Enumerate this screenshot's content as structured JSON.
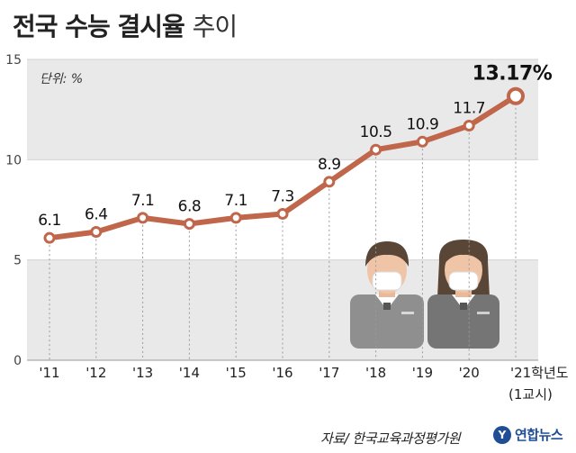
{
  "title": {
    "main": "전국 수능 결시율",
    "sub": "추이"
  },
  "unit_label": "단위: %",
  "source": "자료/ 한국교육과정평가원",
  "logo": {
    "name": "연합뉴스",
    "icon": "yonhap-logo-icon"
  },
  "colors": {
    "line": "#c0664a",
    "band": "#e9e9e9",
    "figure": "#8f8f8f"
  },
  "chart_data": {
    "type": "line",
    "categories": [
      "'11",
      "'12",
      "'13",
      "'14",
      "'15",
      "'16",
      "'17",
      "'18",
      "'19",
      "'20",
      "'21학년도"
    ],
    "last_category_note": "(1교시)",
    "values": [
      6.1,
      6.4,
      7.1,
      6.8,
      7.1,
      7.3,
      8.9,
      10.5,
      10.9,
      11.7,
      13.17
    ],
    "value_labels": [
      "6.1",
      "6.4",
      "7.1",
      "6.8",
      "7.1",
      "7.3",
      "8.9",
      "10.5",
      "10.9",
      "11.7",
      "13.17%"
    ],
    "y_ticks": [
      0,
      5,
      10,
      15
    ],
    "ylim": [
      0,
      15
    ],
    "title": "전국 수능 결시율 추이",
    "ylabel": "단위: %",
    "xlabel": ""
  }
}
